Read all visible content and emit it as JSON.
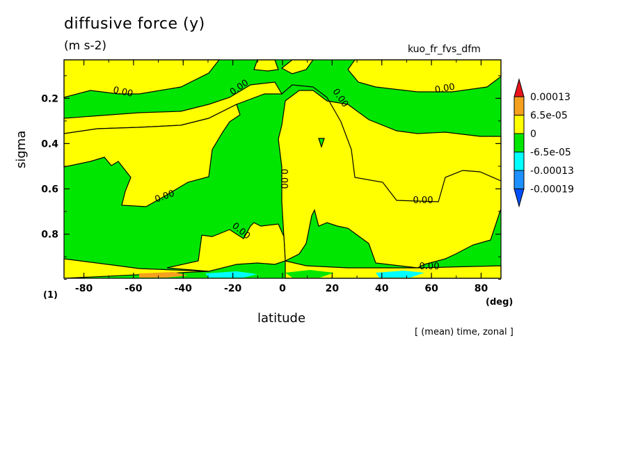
{
  "chart_data": {
    "type": "heatmap",
    "title": "diffusive force (y)",
    "units": "(m s-2)",
    "variable": "kuo_fr_fvs_dfm",
    "xlabel": "latitude",
    "x_unit": "(deg)",
    "ylabel": "sigma",
    "panel_label": "(1)",
    "footer": "[ (mean) time, zonal ]",
    "xlim": [
      -88,
      88
    ],
    "ylim": [
      0.995,
      0.03
    ],
    "x_ticks": [
      "-80",
      "-60",
      "-40",
      "-20",
      "0",
      "20",
      "40",
      "60",
      "80"
    ],
    "x_tick_values": [
      -80,
      -60,
      -40,
      -20,
      0,
      20,
      40,
      60,
      80
    ],
    "y_ticks": [
      "0.2",
      "0.4",
      "0.6",
      "0.8"
    ],
    "y_tick_values": [
      0.2,
      0.4,
      0.6,
      0.8
    ],
    "contour_labels": [
      "0.00",
      "0.00",
      "0.00",
      "0.00",
      "0.00",
      "0.00",
      "0.00",
      "0.00",
      "0.00"
    ],
    "colorbar": {
      "levels": [
        "0.00013",
        "6.5e-05",
        "0",
        "-6.5e-05",
        "-0.00013",
        "-0.00019"
      ],
      "colors": [
        "#e8141c",
        "#f5a01e",
        "#ffff00",
        "#00e600",
        "#00ffff",
        "#1e90ff",
        "#0050ff"
      ]
    },
    "colors": {
      "positive_small": "#ffff00",
      "negative_small": "#00e600",
      "contour": "#000000"
    }
  }
}
